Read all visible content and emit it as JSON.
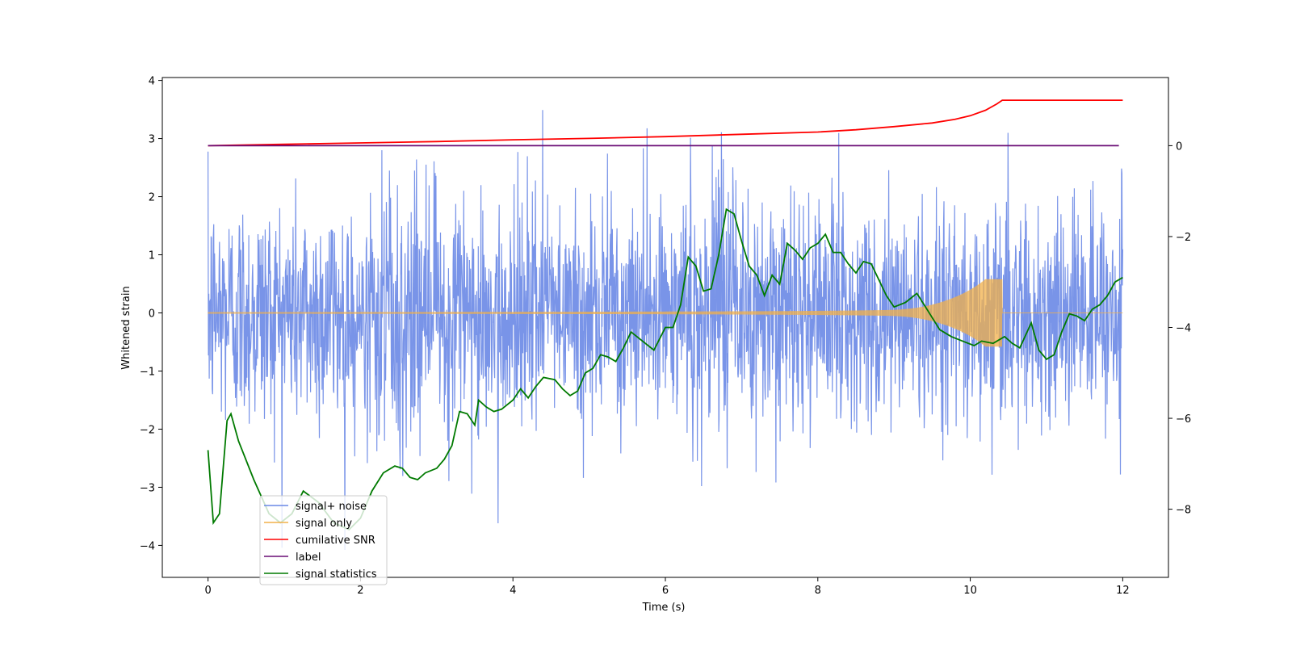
{
  "chart_data": {
    "type": "line",
    "title": "",
    "xlabel": "Time (s)",
    "ylabel": "Whitened strain",
    "y2label": "",
    "xlim": [
      -0.6,
      12.6
    ],
    "ylim": [
      -4.55,
      4.05
    ],
    "y2lim": [
      -9.5,
      1.5
    ],
    "xticks": [
      0,
      2,
      4,
      6,
      8,
      10,
      12
    ],
    "yticks": [
      -4,
      -3,
      -2,
      -1,
      0,
      1,
      2,
      3,
      4
    ],
    "y2ticks": [
      -8,
      -6,
      -4,
      -2,
      0
    ],
    "legend_position": "lower-left",
    "series": [
      {
        "name": "signal+ noise",
        "axis": "left",
        "color": "#6a88e6",
        "description": "dense whitened noise, roughly +/-2 with spikes to about +/-3.6",
        "x_range": [
          0,
          12
        ],
        "peak_max": 3.6,
        "peak_min": -4.15
      },
      {
        "name": "signal only",
        "axis": "left",
        "color": "#f2b04a",
        "description": "chirp growing to amplitude ~0.6 and ending at t=10.42",
        "x_range": [
          0,
          12
        ],
        "merger_time": 10.42,
        "peak_amplitude": 0.58
      },
      {
        "name": "cumilative SNR",
        "axis": "right",
        "color": "#ff0000",
        "points": [
          [
            0,
            0.0
          ],
          [
            1,
            0.03
          ],
          [
            2,
            0.06
          ],
          [
            3,
            0.09
          ],
          [
            4,
            0.13
          ],
          [
            5,
            0.16
          ],
          [
            6,
            0.2
          ],
          [
            7,
            0.25
          ],
          [
            8,
            0.3
          ],
          [
            8.5,
            0.35
          ],
          [
            9,
            0.42
          ],
          [
            9.5,
            0.5
          ],
          [
            9.8,
            0.58
          ],
          [
            10,
            0.66
          ],
          [
            10.2,
            0.78
          ],
          [
            10.35,
            0.92
          ],
          [
            10.42,
            1.0
          ],
          [
            12,
            1.0
          ]
        ]
      },
      {
        "name": "label",
        "axis": "right",
        "color": "#6a0d75",
        "points": [
          [
            0,
            0
          ],
          [
            11.95,
            0
          ]
        ]
      },
      {
        "name": "signal statistics",
        "axis": "right",
        "color": "#007a00",
        "points": [
          [
            0,
            -6.7
          ],
          [
            0.07,
            -8.3
          ],
          [
            0.15,
            -8.1
          ],
          [
            0.25,
            -6.05
          ],
          [
            0.3,
            -5.9
          ],
          [
            0.4,
            -6.5
          ],
          [
            0.6,
            -7.35
          ],
          [
            0.8,
            -8.1
          ],
          [
            0.95,
            -8.3
          ],
          [
            1.1,
            -8.1
          ],
          [
            1.25,
            -7.6
          ],
          [
            1.45,
            -7.85
          ],
          [
            1.65,
            -8.3
          ],
          [
            1.85,
            -8.45
          ],
          [
            2.0,
            -8.2
          ],
          [
            2.15,
            -7.6
          ],
          [
            2.3,
            -7.2
          ],
          [
            2.45,
            -7.05
          ],
          [
            2.55,
            -7.1
          ],
          [
            2.65,
            -7.3
          ],
          [
            2.75,
            -7.35
          ],
          [
            2.85,
            -7.2
          ],
          [
            3.0,
            -7.1
          ],
          [
            3.1,
            -6.9
          ],
          [
            3.2,
            -6.6
          ],
          [
            3.3,
            -5.85
          ],
          [
            3.4,
            -5.9
          ],
          [
            3.5,
            -6.15
          ],
          [
            3.55,
            -5.6
          ],
          [
            3.65,
            -5.75
          ],
          [
            3.75,
            -5.85
          ],
          [
            3.85,
            -5.8
          ],
          [
            4.0,
            -5.6
          ],
          [
            4.1,
            -5.35
          ],
          [
            4.2,
            -5.55
          ],
          [
            4.3,
            -5.3
          ],
          [
            4.4,
            -5.1
          ],
          [
            4.55,
            -5.15
          ],
          [
            4.65,
            -5.35
          ],
          [
            4.75,
            -5.5
          ],
          [
            4.85,
            -5.4
          ],
          [
            4.95,
            -5.0
          ],
          [
            5.05,
            -4.9
          ],
          [
            5.15,
            -4.6
          ],
          [
            5.25,
            -4.65
          ],
          [
            5.35,
            -4.75
          ],
          [
            5.45,
            -4.45
          ],
          [
            5.55,
            -4.1
          ],
          [
            5.7,
            -4.3
          ],
          [
            5.85,
            -4.5
          ],
          [
            6.0,
            -4.0
          ],
          [
            6.1,
            -4.0
          ],
          [
            6.2,
            -3.5
          ],
          [
            6.3,
            -2.45
          ],
          [
            6.4,
            -2.65
          ],
          [
            6.5,
            -3.2
          ],
          [
            6.6,
            -3.15
          ],
          [
            6.7,
            -2.4
          ],
          [
            6.8,
            -1.4
          ],
          [
            6.9,
            -1.5
          ],
          [
            7.0,
            -2.1
          ],
          [
            7.1,
            -2.65
          ],
          [
            7.2,
            -2.85
          ],
          [
            7.3,
            -3.3
          ],
          [
            7.4,
            -2.85
          ],
          [
            7.5,
            -3.05
          ],
          [
            7.6,
            -2.15
          ],
          [
            7.7,
            -2.3
          ],
          [
            7.8,
            -2.5
          ],
          [
            7.9,
            -2.25
          ],
          [
            8.0,
            -2.15
          ],
          [
            8.1,
            -1.95
          ],
          [
            8.2,
            -2.35
          ],
          [
            8.3,
            -2.35
          ],
          [
            8.4,
            -2.6
          ],
          [
            8.5,
            -2.8
          ],
          [
            8.6,
            -2.55
          ],
          [
            8.7,
            -2.6
          ],
          [
            8.8,
            -2.95
          ],
          [
            8.9,
            -3.3
          ],
          [
            9.0,
            -3.55
          ],
          [
            9.15,
            -3.45
          ],
          [
            9.3,
            -3.25
          ],
          [
            9.45,
            -3.65
          ],
          [
            9.6,
            -4.05
          ],
          [
            9.75,
            -4.2
          ],
          [
            9.9,
            -4.3
          ],
          [
            10.05,
            -4.4
          ],
          [
            10.15,
            -4.3
          ],
          [
            10.3,
            -4.35
          ],
          [
            10.45,
            -4.2
          ],
          [
            10.55,
            -4.35
          ],
          [
            10.65,
            -4.45
          ],
          [
            10.8,
            -3.9
          ],
          [
            10.9,
            -4.5
          ],
          [
            11.0,
            -4.7
          ],
          [
            11.1,
            -4.6
          ],
          [
            11.2,
            -4.1
          ],
          [
            11.3,
            -3.7
          ],
          [
            11.4,
            -3.75
          ],
          [
            11.5,
            -3.85
          ],
          [
            11.6,
            -3.6
          ],
          [
            11.7,
            -3.5
          ],
          [
            11.8,
            -3.3
          ],
          [
            11.9,
            -3.0
          ],
          [
            12.0,
            -2.9
          ]
        ]
      }
    ]
  }
}
